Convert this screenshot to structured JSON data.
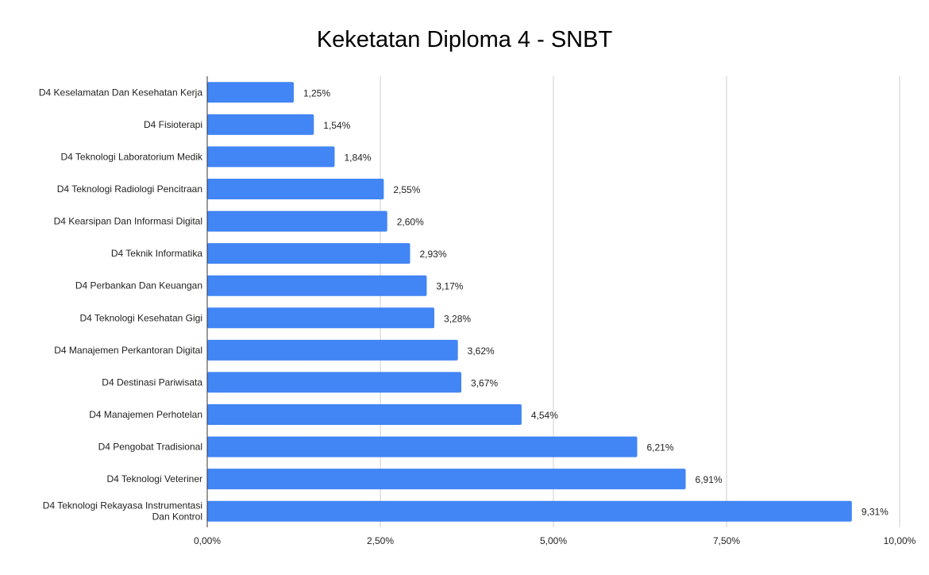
{
  "chart_data": {
    "type": "bar",
    "orientation": "horizontal",
    "title": "Keketatan Diploma 4 - SNBT",
    "xlabel": "",
    "ylabel": "",
    "categories": [
      [
        "D4 Keselamatan Dan Kesehatan Kerja"
      ],
      [
        "D4 Fisioterapi"
      ],
      [
        "D4 Teknologi Laboratorium Medik"
      ],
      [
        "D4 Teknologi Radiologi Pencitraan"
      ],
      [
        "D4 Kearsipan Dan Informasi Digital"
      ],
      [
        "D4 Teknik Informatika"
      ],
      [
        "D4 Perbankan Dan Keuangan"
      ],
      [
        "D4 Teknologi Kesehatan Gigi"
      ],
      [
        "D4 Manajemen Perkantoran Digital"
      ],
      [
        "D4 Destinasi Pariwisata"
      ],
      [
        "D4 Manajemen Perhotelan"
      ],
      [
        "D4 Pengobat Tradisional"
      ],
      [
        "D4 Teknologi Veteriner"
      ],
      [
        "D4 Teknologi Rekayasa Instrumentasi",
        "Dan Kontrol"
      ]
    ],
    "values": [
      1.25,
      1.54,
      1.84,
      2.55,
      2.6,
      2.93,
      3.17,
      3.28,
      3.62,
      3.67,
      4.54,
      6.21,
      6.91,
      9.31
    ],
    "data_labels": [
      "1,25%",
      "1,54%",
      "1,84%",
      "2,55%",
      "2,60%",
      "2,93%",
      "3,17%",
      "3,28%",
      "3,62%",
      "3,67%",
      "4,54%",
      "6,21%",
      "6,91%",
      "9,31%"
    ],
    "xlim": [
      0,
      10
    ],
    "ticks": [
      0,
      2.5,
      5,
      7.5,
      10
    ],
    "tick_labels": [
      "0,00%",
      "2,50%",
      "5,00%",
      "7,50%",
      "10,00%"
    ],
    "grid": true,
    "legend": "none",
    "colors": {
      "bar": "#4285f4",
      "grid": "#cccccc",
      "axis": "#333333"
    }
  }
}
